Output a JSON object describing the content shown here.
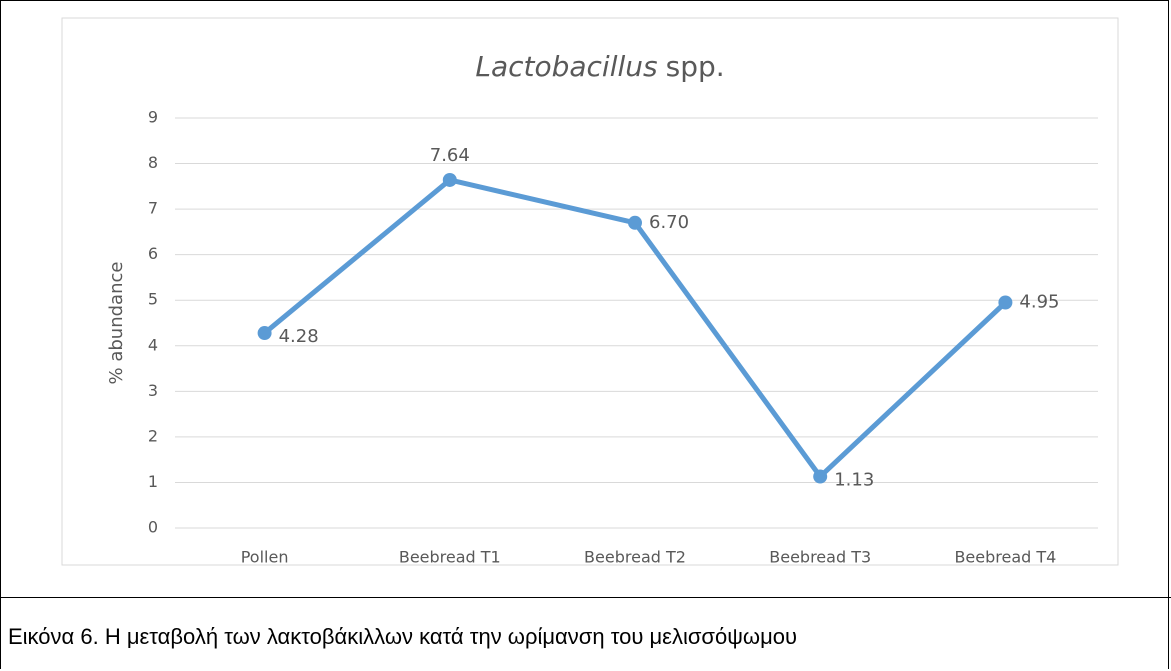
{
  "chart_data": {
    "type": "line",
    "title": [
      "Lactobacillus",
      "spp."
    ],
    "y_label": "% abundance",
    "categories": [
      "Pollen",
      "Beebread T1",
      "Beebread T2",
      "Beebread T3",
      "Beebread T4"
    ],
    "series": [
      {
        "color": "#5b9bd5",
        "values": [
          4.28,
          7.64,
          6.7,
          1.13,
          4.95
        ],
        "value_labels": [
          "4.28",
          "7.64",
          "6.70",
          "1.13",
          "4.95"
        ]
      }
    ],
    "ylim": [
      0,
      9
    ],
    "yticks": [
      0,
      1,
      2,
      3,
      4,
      5,
      6,
      7,
      8,
      9
    ],
    "grid": true
  },
  "caption": "Εικόνα 6. Η μεταβολή των λακτοβάκιλλων κατά την ωρίμανση του μελισσόψωμου"
}
